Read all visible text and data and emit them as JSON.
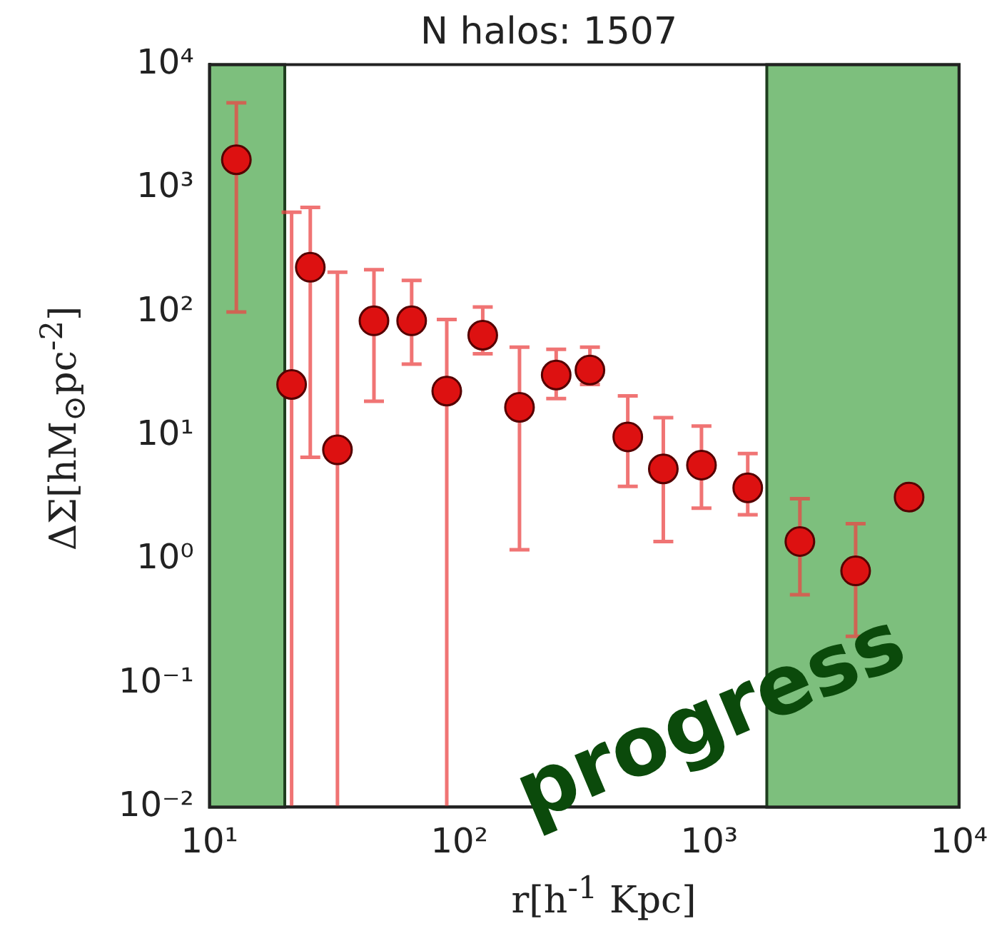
{
  "chart_data": {
    "type": "scatter",
    "title": "N halos: 1507",
    "xlabel": "r[h$^{-1}$ Kpc]",
    "ylabel": "ΔΣ[hM$_{⊙}$pc$^{-2}$]",
    "log": "xy",
    "marker": "circle",
    "grid": false,
    "legend": false,
    "xlim": [
      10,
      10000
    ],
    "xticks": [
      {
        "value": 10,
        "label": "10¹"
      },
      {
        "value": 100,
        "label": "10²"
      },
      {
        "value": 1000,
        "label": "10³"
      },
      {
        "value": 10000,
        "label": "10⁴"
      }
    ],
    "ylim": [
      0.01,
      10000
    ],
    "yticks": [
      {
        "value": 0.01,
        "label": "10⁻²"
      },
      {
        "value": 0.1,
        "label": "10⁻¹"
      },
      {
        "value": 1,
        "label": "10⁰"
      },
      {
        "value": 10,
        "label": "10¹"
      },
      {
        "value": 100,
        "label": "10²"
      },
      {
        "value": 1000,
        "label": "10³"
      },
      {
        "value": 10000,
        "label": "10⁴"
      }
    ],
    "bands": [
      {
        "axis": "x",
        "from": 10,
        "to": 20,
        "color": "#7dbf7d"
      },
      {
        "axis": "x",
        "from": 1700,
        "to": 10000,
        "color": "#7dbf7d"
      }
    ],
    "series": [
      {
        "color": "#dd1111",
        "x": [
          12.8,
          21.3,
          25.3,
          32.5,
          45.5,
          64.4,
          89,
          124,
          174,
          244,
          333,
          472,
          655,
          931,
          1426,
          2306,
          3855,
          6310
        ],
        "values": [
          1700,
          26,
          230,
          7.7,
          85,
          85,
          23,
          65,
          17,
          31,
          34,
          9.8,
          5.4,
          5.8,
          3.8,
          1.4,
          0.81,
          3.2
        ],
        "errors": [
          [
            100,
            4900
          ],
          [
            0.01,
            640
          ],
          [
            6.7,
            700
          ],
          [
            0.01,
            210
          ],
          [
            19,
            220
          ],
          [
            38,
            180
          ],
          [
            0.01,
            87
          ],
          [
            46,
            110
          ],
          [
            1.2,
            52
          ],
          [
            20,
            50
          ],
          [
            26,
            52
          ],
          [
            3.9,
            21
          ],
          [
            1.4,
            14
          ],
          [
            2.6,
            12
          ],
          [
            2.3,
            7.2
          ],
          [
            0.52,
            3.1
          ],
          [
            0.24,
            1.95
          ],
          null
        ]
      }
    ],
    "annotations": [
      "progress"
    ]
  }
}
